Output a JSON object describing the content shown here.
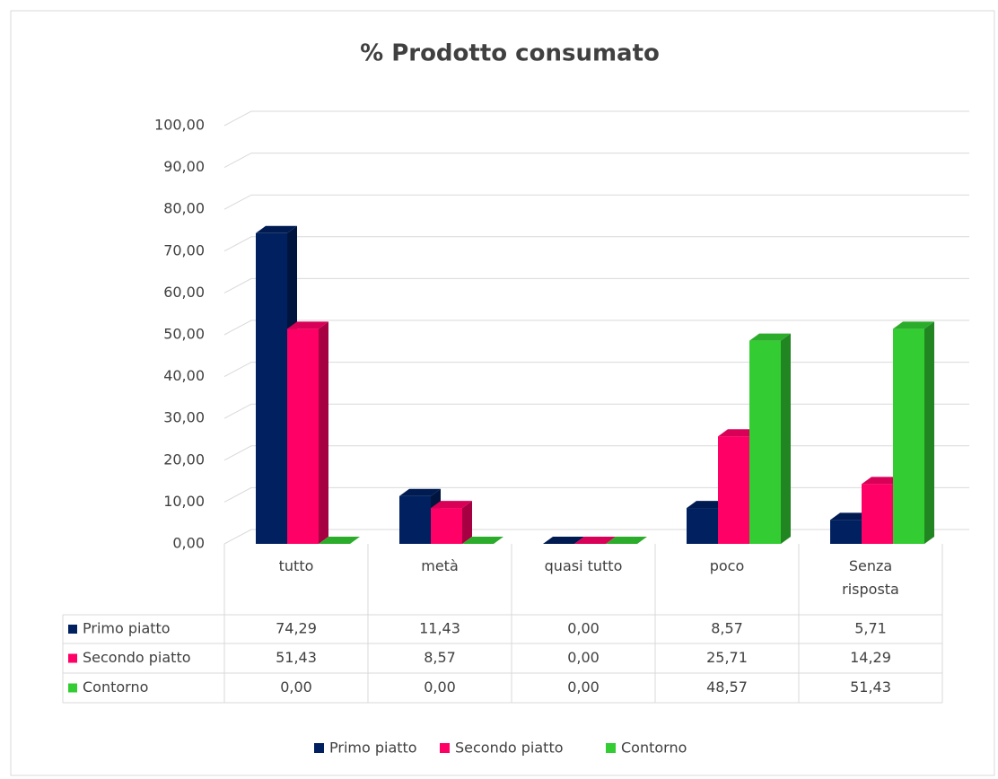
{
  "chart_data": {
    "type": "bar3d",
    "title": "% Prodotto consumato",
    "categories": [
      "tutto",
      "metà",
      "quasi tutto",
      "poco",
      "Senza risposta"
    ],
    "series": [
      {
        "name": "Primo piatto",
        "color": "#002060",
        "values": [
          74.29,
          11.43,
          0,
          8.57,
          5.71
        ],
        "value_labels": [
          "74,29",
          "11,43",
          "0,00",
          "8,57",
          "5,71"
        ]
      },
      {
        "name": "Secondo piatto",
        "color": "#ff0066",
        "values": [
          51.43,
          8.57,
          0,
          25.71,
          14.29
        ],
        "value_labels": [
          "51,43",
          "8,57",
          "0,00",
          "25,71",
          "14,29"
        ]
      },
      {
        "name": "Contorno",
        "color": "#33cc33",
        "values": [
          0,
          0,
          0,
          48.57,
          51.43
        ],
        "value_labels": [
          "0,00",
          "0,00",
          "0,00",
          "48,57",
          "51,43"
        ]
      }
    ],
    "ylim": [
      0,
      100
    ],
    "yticks": [
      {
        "value": 0,
        "label": "0,00"
      },
      {
        "value": 10,
        "label": "10,00"
      },
      {
        "value": 20,
        "label": "20,00"
      },
      {
        "value": 30,
        "label": "30,00"
      },
      {
        "value": 40,
        "label": "40,00"
      },
      {
        "value": 50,
        "label": "50,00"
      },
      {
        "value": 60,
        "label": "60,00"
      },
      {
        "value": 70,
        "label": "70,00"
      },
      {
        "value": 80,
        "label": "80,00"
      },
      {
        "value": 90,
        "label": "90,00"
      },
      {
        "value": 100,
        "label": "100,00"
      }
    ],
    "grid": true,
    "legend": "bottom",
    "data_table": true
  }
}
